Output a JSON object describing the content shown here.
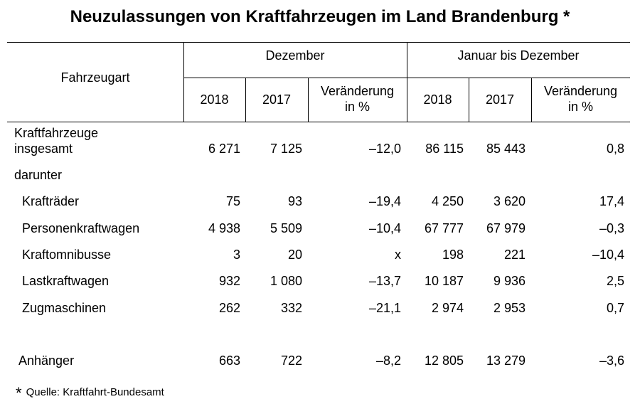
{
  "title": "Neuzulassungen von Kraftfahrzeugen im Land Brandenburg *",
  "header": {
    "fahrzeugart": "Fahrzeugart",
    "group1": "Dezember",
    "group2": "Januar bis Dezember",
    "y2018": "2018",
    "y2017": "2017",
    "change_line1": "Veränderung",
    "change_line2": "in %"
  },
  "rows": {
    "total": {
      "label1": "Kraftfahrzeuge",
      "label2": "insgesamt",
      "d2018": "6 271",
      "d2017": "7 125",
      "dchg": "–12,0",
      "j2018": "86 115",
      "j2017": "85 443",
      "jchg": "0,8"
    },
    "darunter": "darunter",
    "kraftraeder": {
      "label": "Krafträder",
      "d2018": "75",
      "d2017": "93",
      "dchg": "–19,4",
      "j2018": "4 250",
      "j2017": "3 620",
      "jchg": "17,4"
    },
    "pkw": {
      "label": "Personenkraftwagen",
      "d2018": "4 938",
      "d2017": "5 509",
      "dchg": "–10,4",
      "j2018": "67 777",
      "j2017": "67 979",
      "jchg": "–0,3"
    },
    "bus": {
      "label": "Kraftomnibusse",
      "d2018": "3",
      "d2017": "20",
      "dchg": "x",
      "j2018": "198",
      "j2017": "221",
      "jchg": "–10,4"
    },
    "lkw": {
      "label": "Lastkraftwagen",
      "d2018": "932",
      "d2017": "1 080",
      "dchg": "–13,7",
      "j2018": "10 187",
      "j2017": "9 936",
      "jchg": "2,5"
    },
    "zug": {
      "label": "Zugmaschinen",
      "d2018": "262",
      "d2017": "332",
      "dchg": "–21,1",
      "j2018": "2 974",
      "j2017": "2 953",
      "jchg": "0,7"
    },
    "anh": {
      "label": "Anhänger",
      "d2018": "663",
      "d2017": "722",
      "dchg": "–8,2",
      "j2018": "12 805",
      "j2017": "13 279",
      "jchg": "–3,6"
    }
  },
  "footnote": {
    "star": "*",
    "text": "Quelle: Kraftfahrt-Bundesamt"
  }
}
